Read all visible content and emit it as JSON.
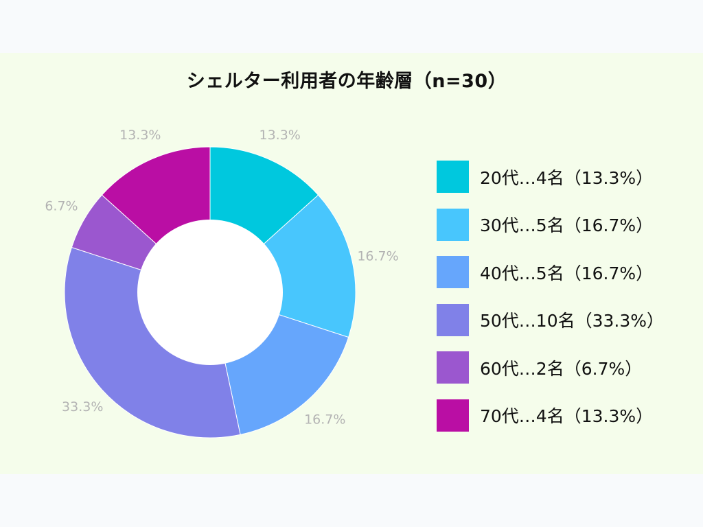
{
  "chart_data": {
    "type": "pie",
    "variant": "donut",
    "title": "シェルター利用者の年齢層（n=30）",
    "total": 30,
    "legend_position": "right",
    "slices": [
      {
        "label": "20代…4名（13.3%）",
        "count": 4,
        "percent": 13.3,
        "data_label": "13.3%",
        "color": "#00c8de"
      },
      {
        "label": "30代…5名（16.7%）",
        "count": 5,
        "percent": 16.7,
        "data_label": "16.7%",
        "color": "#48c6fd"
      },
      {
        "label": "40代…5名（16.7%）",
        "count": 5,
        "percent": 16.7,
        "data_label": "16.7%",
        "color": "#66a6fc"
      },
      {
        "label": "50代…10名（33.3%）",
        "count": 10,
        "percent": 33.3,
        "data_label": "33.3%",
        "color": "#8081e8"
      },
      {
        "label": "60代…2名（6.7%）",
        "count": 2,
        "percent": 6.7,
        "data_label": "6.7%",
        "color": "#9b57cf"
      },
      {
        "label": "70代…4名（13.3%）",
        "count": 4,
        "percent": 13.3,
        "data_label": "13.3%",
        "color": "#ba0ea4"
      }
    ]
  }
}
